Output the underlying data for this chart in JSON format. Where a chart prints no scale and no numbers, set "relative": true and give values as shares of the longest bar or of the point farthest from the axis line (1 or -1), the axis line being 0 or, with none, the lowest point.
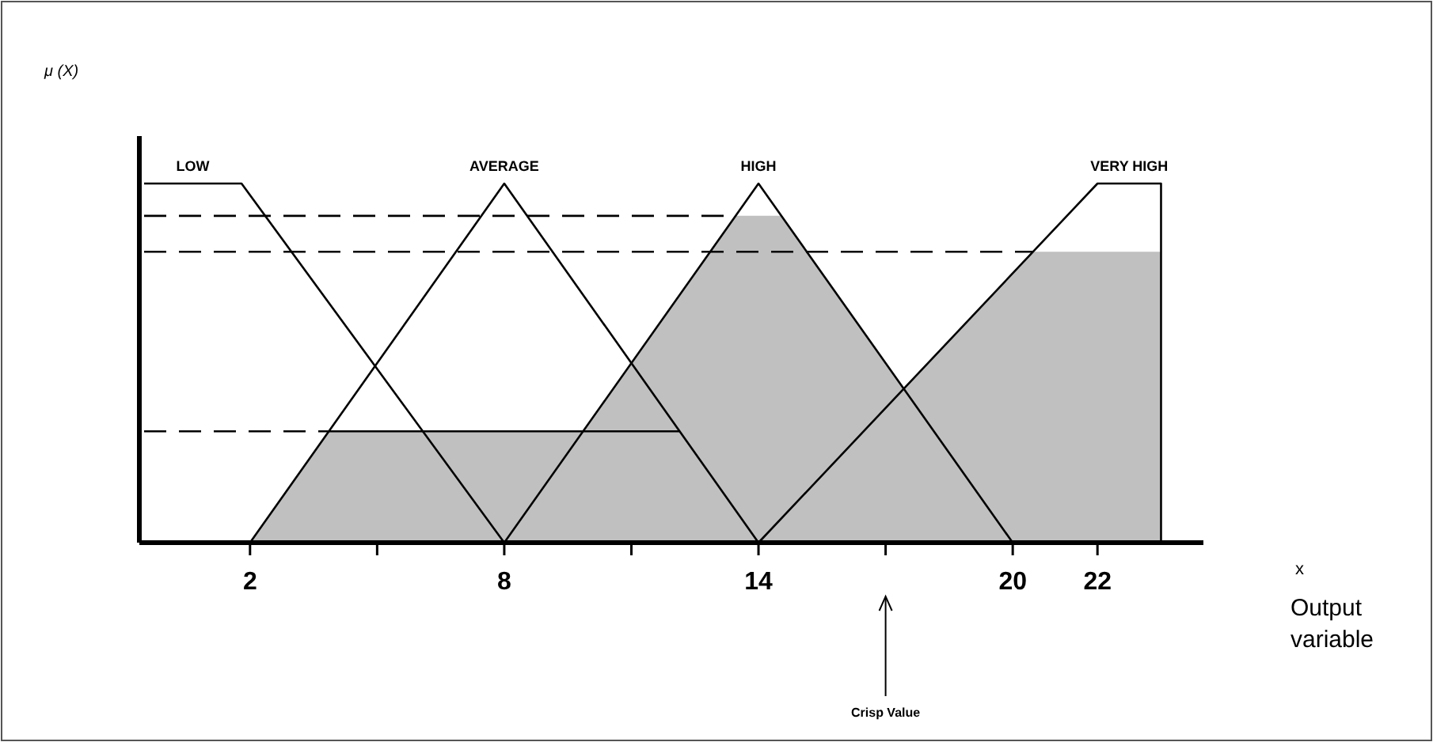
{
  "chart_data": {
    "type": "line",
    "relative": true,
    "xlim": [
      -0.5,
      24.5
    ],
    "xticks": [
      2,
      {
        "value": 5,
        "label": null
      },
      8,
      {
        "value": 11,
        "label": null
      },
      14,
      {
        "value": 17,
        "label": null
      },
      20,
      22
    ],
    "annotations": [
      "μ (X)",
      "x",
      "Crisp Value",
      "Output variable"
    ],
    "series": [
      {
        "type": "area",
        "color": "#c0c0c0",
        "x": [
          2,
          3.85,
          9.85,
          13.46,
          14.54,
          17.43,
          20.48,
          23.5,
          23.5
        ],
        "values": [
          0,
          0.31,
          0.31,
          0.91,
          0.91,
          0.43,
          0.81,
          0.81,
          0
        ]
      },
      {
        "name": "LOW",
        "color": "#000000",
        "x": [
          -0.5,
          1.8,
          8
        ],
        "values": [
          1,
          1,
          0
        ]
      },
      {
        "name": "AVERAGE",
        "color": "#000000",
        "x": [
          2,
          8,
          14
        ],
        "values": [
          0,
          1,
          0
        ]
      },
      {
        "name": "HIGH",
        "color": "#000000",
        "x": [
          8,
          14,
          20
        ],
        "values": [
          0,
          1,
          0
        ]
      },
      {
        "name": "VERY HIGH",
        "color": "#000000",
        "x": [
          14,
          22,
          23.5,
          23.5
        ],
        "values": [
          0,
          1,
          1,
          0
        ]
      },
      {
        "color": "#000000",
        "x": [
          3.85,
          12.15
        ],
        "values": [
          0.31,
          0.31
        ]
      },
      {
        "color": "#000000",
        "line_style": "dashed",
        "x": [
          -0.5,
          3.85
        ],
        "values": [
          0.31,
          0.31
        ]
      },
      {
        "color": "#000000",
        "line_style": "dashed",
        "x": [
          -0.5,
          13.46
        ],
        "values": [
          0.91,
          0.91
        ]
      },
      {
        "color": "#000000",
        "line_style": "dashed",
        "x": [
          -0.5,
          20.48
        ],
        "values": [
          0.81,
          0.81
        ]
      }
    ]
  }
}
